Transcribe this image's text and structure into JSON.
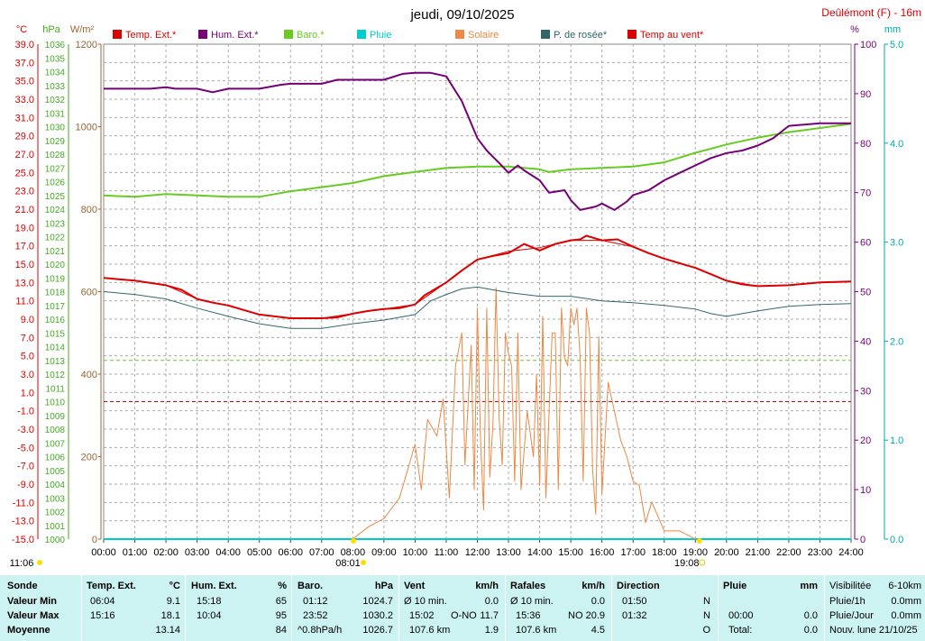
{
  "header": {
    "title": "jeudi, 09/10/2025",
    "station": "Deûlémont (F) - 16m"
  },
  "legend": [
    {
      "label": "Temp. Ext.*",
      "color": "#dd0000"
    },
    {
      "label": "Hum. Ext.*",
      "color": "#770077"
    },
    {
      "label": "Baro.*",
      "color": "#66cc22"
    },
    {
      "label": "Pluie",
      "color": "#00cccc"
    },
    {
      "label": "Solaire",
      "color": "#ee8844"
    },
    {
      "label": "P. de rosée*",
      "color": "#336666"
    },
    {
      "label": "Temp au vent*",
      "color": "#dd0000"
    }
  ],
  "axis_units": {
    "temp": "°C",
    "baro": "hPa",
    "solar": "W/m²",
    "hum": "%",
    "rain": "mm"
  },
  "axis_colors": {
    "temp": "#dd0000",
    "baro": "#44aa22",
    "solar": "#996633",
    "hum": "#770077",
    "rain": "#00aaaa"
  },
  "chart_data": {
    "type": "line",
    "x_label": "time",
    "x_ticks": [
      "00:00",
      "01:00",
      "02:00",
      "03:00",
      "04:00",
      "05:00",
      "06:00",
      "07:00",
      "08:00",
      "09:00",
      "10:00",
      "11:00",
      "12:00",
      "13:00",
      "14:00",
      "15:00",
      "16:00",
      "17:00",
      "18:00",
      "19:00",
      "20:00",
      "21:00",
      "22:00",
      "23:00",
      "24:00"
    ],
    "xlim_hours": [
      0,
      24
    ],
    "axes": {
      "temp": {
        "min": -15,
        "max": 39,
        "ticks": [
          -15,
          -13,
          -11,
          -9,
          -7,
          -5,
          -3,
          -1,
          1,
          3,
          5,
          7,
          9,
          11,
          13,
          15,
          17,
          19,
          21,
          23,
          25,
          27,
          29,
          31,
          33,
          35,
          37,
          39
        ],
        "tick_labels": [
          "-15.0",
          "-13.0",
          "-11.0",
          "-9.0",
          "-7.0",
          "-5.0",
          "-3.0",
          "-1.0",
          "1.0",
          "3.0",
          "5.0",
          "7.0",
          "9.0",
          "11.0",
          "13.0",
          "15.0",
          "17.0",
          "19.0",
          "21.0",
          "23.0",
          "25.0",
          "27.0",
          "29.0",
          "31.0",
          "33.0",
          "35.0",
          "37.0",
          "39.0"
        ]
      },
      "baro": {
        "min": 1000,
        "max": 1036,
        "ticks": [
          1000,
          1001,
          1002,
          1003,
          1004,
          1005,
          1006,
          1007,
          1008,
          1009,
          1010,
          1011,
          1012,
          1013,
          1014,
          1015,
          1016,
          1017,
          1018,
          1019,
          1020,
          1021,
          1022,
          1023,
          1024,
          1025,
          1026,
          1027,
          1028,
          1029,
          1030,
          1031,
          1032,
          1033,
          1034,
          1035,
          1036
        ]
      },
      "solar": {
        "min": 0,
        "max": 1200,
        "ticks": [
          0,
          200,
          400,
          600,
          800,
          1000,
          1200
        ]
      },
      "hum": {
        "min": 0,
        "max": 100,
        "ticks": [
          0,
          10,
          20,
          30,
          40,
          50,
          60,
          70,
          80,
          90,
          100
        ]
      },
      "rain": {
        "min": 0,
        "max": 5,
        "ticks": [
          0.0,
          1.0,
          2.0,
          3.0,
          4.0,
          5.0
        ],
        "tick_labels": [
          "0.0",
          "1.0",
          "2.0",
          "3.0",
          "4.0",
          "5.0"
        ]
      }
    },
    "reference_lines": [
      {
        "axis": "temp",
        "value": 0.0,
        "color": "#dd0000",
        "style": "dashed"
      },
      {
        "axis": "baro",
        "value": 1013,
        "color": "#66cc22",
        "style": "dashed"
      }
    ],
    "sun": {
      "sunrise": "08:01",
      "sunset": "19:08",
      "sunrise_h": 8.02,
      "sunset_h": 19.13,
      "day_length": "11:06"
    },
    "series": [
      {
        "name": "Temp. Ext.*",
        "axis": "temp",
        "color": "#dd0000",
        "x": [
          0,
          1,
          2,
          2.5,
          3,
          3.5,
          4,
          5,
          6,
          7,
          7.5,
          8,
          8.5,
          9,
          9.5,
          10,
          10.3,
          11,
          11.5,
          12,
          12.5,
          13,
          13.5,
          14,
          14.5,
          15,
          15.3,
          15.5,
          16,
          16.5,
          17,
          17.5,
          18,
          18.5,
          19,
          19.5,
          20,
          20.5,
          21,
          22,
          23,
          24
        ],
        "y": [
          13.5,
          13.2,
          12.7,
          12.2,
          11.2,
          10.8,
          10.5,
          9.5,
          9.1,
          9.1,
          9.2,
          9.6,
          9.9,
          10.1,
          10.2,
          10.6,
          11.6,
          13.0,
          14.3,
          15.5,
          15.9,
          16.2,
          17.2,
          16.5,
          17.2,
          17.6,
          17.7,
          18.1,
          17.6,
          17.7,
          16.9,
          16.2,
          15.6,
          15.1,
          14.6,
          13.9,
          13.2,
          12.8,
          12.6,
          12.7,
          13.0,
          13.1
        ]
      },
      {
        "name": "Temp au vent*",
        "axis": "temp",
        "color": "#dd0000",
        "x": [
          0,
          1,
          2,
          3,
          4,
          5,
          6,
          7,
          8,
          9,
          10,
          11,
          12,
          13,
          14,
          15,
          16,
          17,
          18,
          19,
          20,
          21,
          22,
          23,
          24
        ],
        "y": [
          13.5,
          13.2,
          12.7,
          11.2,
          10.5,
          9.5,
          9.1,
          9.1,
          9.6,
          10.1,
          10.6,
          13.0,
          15.5,
          16.4,
          16.8,
          17.6,
          17.6,
          16.9,
          15.6,
          14.6,
          13.2,
          12.6,
          12.7,
          13.0,
          13.1
        ]
      },
      {
        "name": "Hum. Ext.*",
        "axis": "hum",
        "color": "#770077",
        "x": [
          0,
          1,
          1.5,
          2,
          2.3,
          3,
          3.5,
          4,
          5,
          5.7,
          6,
          7,
          7.5,
          8,
          9,
          9.6,
          10,
          10.5,
          11,
          11.5,
          12,
          12.3,
          12.7,
          13,
          13.3,
          13.5,
          14,
          14.3,
          14.8,
          15,
          15.3,
          15.8,
          16,
          16.4,
          16.8,
          17,
          17.5,
          18,
          18.5,
          19,
          19.5,
          20,
          20.5,
          21,
          21.5,
          22,
          23,
          24
        ],
        "y": [
          91,
          91,
          91,
          91.3,
          91,
          91,
          90.3,
          91,
          91,
          91.8,
          92,
          92,
          92.8,
          92.8,
          92.8,
          94,
          94.2,
          94.2,
          93.5,
          88.5,
          81,
          78.5,
          76,
          74,
          75.5,
          74.5,
          72.5,
          70,
          70.5,
          68.5,
          66.5,
          67.2,
          67.8,
          66.5,
          68.2,
          69.5,
          70.5,
          72.5,
          74,
          75.5,
          77,
          78,
          78.5,
          79.5,
          81,
          83.5,
          84,
          84
        ]
      },
      {
        "name": "Baro.*",
        "axis": "baro",
        "color": "#66cc22",
        "x": [
          0,
          1,
          2,
          3,
          4,
          5,
          6,
          7,
          8,
          9,
          10,
          11,
          12,
          13,
          14,
          14.3,
          15,
          16,
          17,
          18,
          19,
          20,
          21,
          22,
          23,
          24
        ],
        "y": [
          1025.0,
          1024.9,
          1025.1,
          1025.0,
          1024.9,
          1024.9,
          1025.3,
          1025.6,
          1025.9,
          1026.4,
          1026.7,
          1027.0,
          1027.1,
          1027.1,
          1026.9,
          1026.7,
          1026.9,
          1027.0,
          1027.1,
          1027.4,
          1028.1,
          1028.7,
          1029.2,
          1029.6,
          1029.9,
          1030.2
        ]
      },
      {
        "name": "P. de rosée*",
        "axis": "temp",
        "color": "#336666",
        "x": [
          0,
          1,
          2,
          3,
          4,
          5,
          6,
          7,
          8,
          9,
          10,
          10.5,
          11,
          11.5,
          12,
          13,
          14,
          15,
          16,
          17,
          18,
          19,
          19.5,
          20,
          21,
          22,
          23,
          24
        ],
        "y": [
          12.0,
          11.7,
          11.2,
          10.2,
          9.3,
          8.5,
          8.0,
          8.0,
          8.5,
          8.9,
          9.5,
          11.0,
          11.7,
          12.3,
          12.5,
          11.9,
          11.5,
          11.5,
          11.0,
          10.8,
          10.5,
          10.1,
          9.6,
          9.3,
          9.9,
          10.4,
          10.6,
          10.7
        ]
      },
      {
        "name": "Solaire",
        "axis": "solar",
        "color": "#ee8844",
        "x": [
          8.0,
          8.5,
          9.0,
          9.5,
          10.0,
          10.2,
          10.4,
          10.7,
          10.9,
          11.1,
          11.3,
          11.5,
          11.6,
          11.8,
          11.9,
          12.0,
          12.1,
          12.2,
          12.3,
          12.4,
          12.5,
          12.6,
          12.7,
          12.8,
          12.9,
          13.0,
          13.1,
          13.2,
          13.3,
          13.4,
          13.6,
          13.8,
          13.9,
          14.0,
          14.1,
          14.2,
          14.3,
          14.4,
          14.5,
          14.6,
          14.7,
          14.8,
          14.9,
          15.0,
          15.1,
          15.2,
          15.3,
          15.4,
          15.5,
          15.6,
          15.7,
          15.8,
          15.9,
          16.0,
          16.2,
          16.4,
          16.6,
          16.8,
          17.0,
          17.2,
          17.4,
          17.6,
          18.0,
          18.5,
          19.0
        ],
        "y": [
          0,
          30,
          50,
          100,
          230,
          120,
          290,
          250,
          340,
          100,
          420,
          500,
          180,
          470,
          120,
          560,
          240,
          70,
          560,
          150,
          280,
          610,
          290,
          180,
          500,
          450,
          420,
          140,
          500,
          120,
          310,
          200,
          400,
          130,
          540,
          100,
          300,
          500,
          500,
          120,
          560,
          440,
          420,
          560,
          520,
          560,
          440,
          140,
          560,
          500,
          170,
          60,
          490,
          110,
          380,
          310,
          240,
          200,
          140,
          130,
          40,
          90,
          20,
          20,
          0
        ]
      }
    ]
  },
  "stats": {
    "headers": {
      "sonde": "Sonde",
      "temp": "Temp. Ext.",
      "temp_unit": "°C",
      "hum": "Hum. Ext.",
      "hum_unit": "%",
      "baro": "Baro.",
      "baro_unit": "hPa",
      "vent": "Vent",
      "vent_unit": "km/h",
      "rafales": "Rafales",
      "rafales_unit": "km/h",
      "direction": "Direction",
      "pluie": "Pluie",
      "pluie_unit": "mm"
    },
    "rows": {
      "min_label": "Valeur Min",
      "max_label": "Valeur Max",
      "avg_label": "Moyenne"
    },
    "temp": {
      "min_time": "06:04",
      "min": "9.1",
      "max_time": "15:16",
      "max": "18.1",
      "avg": "13.14"
    },
    "hum": {
      "min_time": "15:18",
      "min": "65",
      "max_time": "10:04",
      "max": "95",
      "avg": "84"
    },
    "baro": {
      "min_time": "01:12",
      "min": "1024.7",
      "max_time": "23:52",
      "max": "1030.2",
      "trend": "^0.8hPa/h",
      "avg": "1026.7"
    },
    "vent": {
      "min_label": "Ø 10 min.",
      "min": "0.0",
      "max_time": "15:02",
      "max_dir": "O-NO",
      "max": "11.7",
      "dist": "107.6 km",
      "avg": "1.9"
    },
    "rafales": {
      "min_label": "Ø 10 min.",
      "min": "0.0",
      "max_time": "15:36",
      "max_dir": "NO",
      "max": "20.9",
      "dist": "107.6 km",
      "avg": "4.5"
    },
    "direction": {
      "r1_time": "01:50",
      "r1": "N",
      "r2_time": "01:32",
      "r2": "N",
      "r3": "O"
    },
    "pluie": {
      "r2_time": "00:00",
      "r2": "0.0",
      "r3_label": "Total:",
      "r3": "0.0"
    },
    "extra": [
      {
        "label": "Visibilitée",
        "value": "6-10km"
      },
      {
        "label": "Pluie/1h",
        "value": "0.0mm"
      },
      {
        "label": "Pluie/Jour",
        "value": "0.0mm"
      },
      {
        "label": "Nouv. lune 21/10/25",
        "value": ""
      }
    ]
  }
}
